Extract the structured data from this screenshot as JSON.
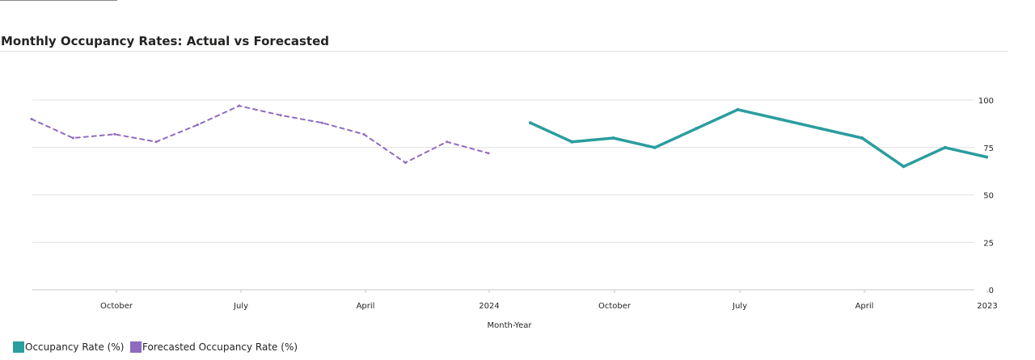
{
  "title": "Monthly Occupancy Rates: Actual vs Forecasted",
  "colors": {
    "actual": "#2A9D9F",
    "forecast": "#8E6BBF",
    "grid": "#e0e0e0",
    "axis_text": "#252423"
  },
  "legend": [
    {
      "label": "Occupancy Rate (%)",
      "color": "#2A9D9F"
    },
    {
      "label": "Forecasted Occupancy Rate (%)",
      "color": "#8E6BBF"
    }
  ],
  "chart_data": {
    "type": "line",
    "title": "Monthly Occupancy Rates: Actual vs Forecasted",
    "xlabel": "Month-Year",
    "ylabel": "",
    "ylim": [
      0,
      100
    ],
    "yticks": [
      0,
      25,
      50,
      75,
      100
    ],
    "y_axis_side": "right",
    "grid": true,
    "legend_position": "bottom-left",
    "x_tick_labels": [
      "October",
      "July",
      "April",
      "2024",
      "October",
      "July",
      "April",
      "2023"
    ],
    "series": [
      {
        "name": "Forecasted Occupancy Rate (%)",
        "style": "dashed",
        "color": "#8E6BBF",
        "values": [
          90,
          80,
          82,
          78,
          87,
          97,
          92,
          88,
          82,
          67,
          78,
          72
        ]
      },
      {
        "name": "Occupancy Rate (%)",
        "style": "solid",
        "color": "#2A9D9F",
        "values": [
          88,
          78,
          80,
          75,
          85,
          95,
          90,
          85,
          80,
          65,
          75,
          70
        ]
      }
    ]
  }
}
